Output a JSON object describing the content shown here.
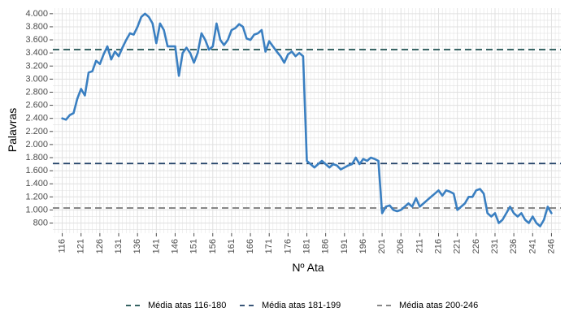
{
  "chart_data": {
    "type": "line",
    "xlabel": "Nº Ata",
    "ylabel": "Palavras",
    "xlim": [
      116,
      246
    ],
    "ylim": [
      800,
      4000
    ],
    "x_ticks": [
      116,
      121,
      126,
      131,
      136,
      141,
      146,
      151,
      156,
      161,
      166,
      171,
      176,
      181,
      186,
      191,
      196,
      201,
      206,
      211,
      216,
      221,
      226,
      231,
      236,
      241,
      246
    ],
    "y_ticks": [
      800,
      1000,
      1200,
      1400,
      1600,
      1800,
      2000,
      2200,
      2400,
      2600,
      2800,
      3000,
      3200,
      3400,
      3600,
      3800,
      4000
    ],
    "y_tick_labels": [
      "800",
      "1.000",
      "1.200",
      "1.400",
      "1.600",
      "1.800",
      "2.000",
      "2.200",
      "2.400",
      "2.600",
      "2.800",
      "3.000",
      "3.200",
      "3.400",
      "3.600",
      "3.800",
      "4.000"
    ],
    "grid": true,
    "legend_position": "bottom",
    "series": [
      {
        "color": "#3a7fc1",
        "x": [
          116,
          117,
          118,
          119,
          120,
          121,
          122,
          123,
          124,
          125,
          126,
          127,
          128,
          129,
          130,
          131,
          132,
          133,
          134,
          135,
          136,
          137,
          138,
          139,
          140,
          141,
          142,
          143,
          144,
          145,
          146,
          147,
          148,
          149,
          150,
          151,
          152,
          153,
          154,
          155,
          156,
          157,
          158,
          159,
          160,
          161,
          162,
          163,
          164,
          165,
          166,
          167,
          168,
          169,
          170,
          171,
          172,
          173,
          174,
          175,
          176,
          177,
          178,
          179,
          180,
          181,
          182,
          183,
          184,
          185,
          186,
          187,
          188,
          189,
          190,
          191,
          192,
          193,
          194,
          195,
          196,
          197,
          198,
          199,
          200,
          201,
          202,
          203,
          204,
          205,
          206,
          207,
          208,
          209,
          210,
          211,
          212,
          213,
          214,
          215,
          216,
          217,
          218,
          219,
          220,
          221,
          222,
          223,
          224,
          225,
          226,
          227,
          228,
          229,
          230,
          231,
          232,
          233,
          234,
          235,
          236,
          237,
          238,
          239,
          240,
          241,
          242,
          243,
          244,
          245,
          246
        ],
        "y": [
          2400,
          2380,
          2450,
          2480,
          2700,
          2850,
          2750,
          3100,
          3120,
          3280,
          3230,
          3380,
          3500,
          3300,
          3420,
          3350,
          3480,
          3600,
          3700,
          3680,
          3800,
          3950,
          4000,
          3950,
          3850,
          3550,
          3850,
          3750,
          3500,
          3500,
          3500,
          3050,
          3400,
          3480,
          3400,
          3250,
          3400,
          3700,
          3600,
          3450,
          3500,
          3850,
          3600,
          3520,
          3600,
          3750,
          3780,
          3840,
          3800,
          3620,
          3600,
          3680,
          3700,
          3750,
          3420,
          3580,
          3500,
          3420,
          3350,
          3250,
          3380,
          3420,
          3350,
          3400,
          3350,
          1750,
          1700,
          1650,
          1700,
          1750,
          1700,
          1650,
          1700,
          1680,
          1620,
          1650,
          1680,
          1700,
          1800,
          1700,
          1780,
          1750,
          1800,
          1780,
          1750,
          950,
          1050,
          1070,
          1000,
          980,
          1000,
          1050,
          1100,
          1050,
          1180,
          1050,
          1100,
          1150,
          1200,
          1250,
          1300,
          1220,
          1300,
          1280,
          1250,
          1000,
          1050,
          1100,
          1200,
          1200,
          1300,
          1320,
          1250,
          950,
          900,
          950,
          800,
          850,
          950,
          1050,
          950,
          900,
          950,
          850,
          800,
          900,
          800,
          750,
          850,
          1050,
          950
        ]
      }
    ],
    "reference_lines": [
      {
        "name": "Média atas 116-180",
        "y": 3450,
        "color": "#1a4d4d",
        "dash": "8,5"
      },
      {
        "name": "Média atas 181-199",
        "y": 1710,
        "color": "#1e3f66",
        "dash": "8,5"
      },
      {
        "name": "Média atas 200-246",
        "y": 1030,
        "color": "#777777",
        "dash": "8,5"
      }
    ]
  }
}
